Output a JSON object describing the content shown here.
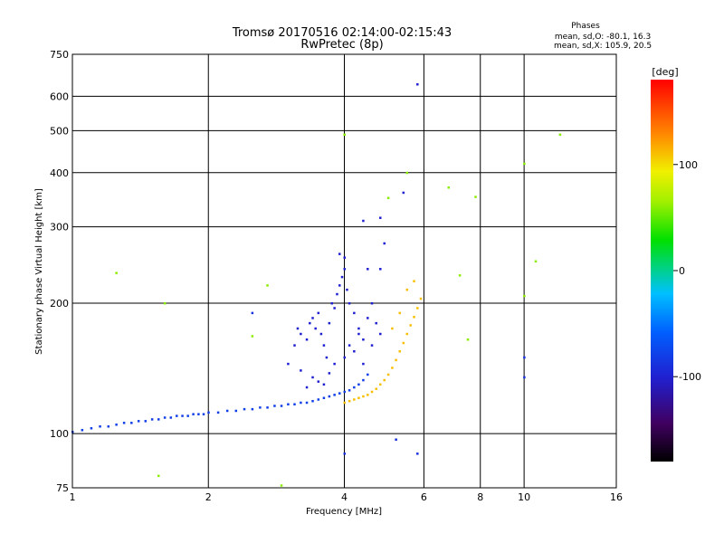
{
  "chart_data": {
    "type": "scatter",
    "title_line1": "Tromsø 20170516 02:14:00-02:15:43",
    "title_line2": "RwPretec (8p)",
    "stats": {
      "heading": "Phases",
      "line_o": "mean, sd,O: -80.1, 16.3",
      "line_x": "mean, sd,X: 105.9, 20.5"
    },
    "xlabel": "Frequency [MHz]",
    "ylabel": "Stationary phase Virtual Height [km]",
    "xscale": "log",
    "yscale": "log",
    "xlim": [
      1,
      16
    ],
    "ylim": [
      75,
      750
    ],
    "xticks": [
      {
        "value": 1,
        "label": "1"
      },
      {
        "value": 2,
        "label": "2"
      },
      {
        "value": 4,
        "label": "4"
      },
      {
        "value": 6,
        "label": "6"
      },
      {
        "value": 8,
        "label": "8"
      },
      {
        "value": 10,
        "label": "10"
      },
      {
        "value": 16,
        "label": "16"
      }
    ],
    "yticks": [
      {
        "value": 75,
        "label": "75"
      },
      {
        "value": 100,
        "label": "100"
      },
      {
        "value": 200,
        "label": "200"
      },
      {
        "value": 300,
        "label": "300"
      },
      {
        "value": 400,
        "label": "400"
      },
      {
        "value": 500,
        "label": "500"
      },
      {
        "value": 600,
        "label": "600"
      },
      {
        "value": 750,
        "label": "750"
      }
    ],
    "colorbar": {
      "unit_label": "[deg]",
      "range": [
        -180,
        180
      ],
      "ticks": [
        {
          "value": 100,
          "label": "100"
        },
        {
          "value": 0,
          "label": "0"
        },
        {
          "value": -100,
          "label": "-100"
        }
      ]
    },
    "series": [
      {
        "name": "O-trace",
        "phase": -80,
        "points": [
          [
            1.0,
            101
          ],
          [
            1.05,
            102
          ],
          [
            1.1,
            103
          ],
          [
            1.15,
            104
          ],
          [
            1.2,
            104
          ],
          [
            1.25,
            105
          ],
          [
            1.3,
            106
          ],
          [
            1.35,
            106
          ],
          [
            1.4,
            107
          ],
          [
            1.45,
            107
          ],
          [
            1.5,
            108
          ],
          [
            1.55,
            108
          ],
          [
            1.6,
            109
          ],
          [
            1.65,
            109
          ],
          [
            1.7,
            110
          ],
          [
            1.75,
            110
          ],
          [
            1.8,
            110
          ],
          [
            1.85,
            111
          ],
          [
            1.9,
            111
          ],
          [
            1.95,
            111
          ],
          [
            2.0,
            112
          ],
          [
            2.1,
            112
          ],
          [
            2.2,
            113
          ],
          [
            2.3,
            113
          ],
          [
            2.4,
            114
          ],
          [
            2.5,
            114
          ],
          [
            2.6,
            115
          ],
          [
            2.7,
            115
          ],
          [
            2.8,
            116
          ],
          [
            2.9,
            116
          ],
          [
            3.0,
            117
          ],
          [
            3.1,
            117
          ],
          [
            3.2,
            118
          ],
          [
            3.3,
            118
          ],
          [
            3.4,
            119
          ],
          [
            3.5,
            120
          ],
          [
            3.6,
            121
          ],
          [
            3.7,
            122
          ],
          [
            3.8,
            123
          ],
          [
            3.9,
            124
          ],
          [
            4.0,
            125
          ],
          [
            4.1,
            126
          ],
          [
            4.2,
            128
          ],
          [
            4.3,
            130
          ],
          [
            4.4,
            133
          ],
          [
            4.5,
            137
          ]
        ]
      },
      {
        "name": "O-spread",
        "phase": -100,
        "points": [
          [
            3.0,
            145
          ],
          [
            3.1,
            160
          ],
          [
            3.15,
            175
          ],
          [
            3.2,
            170
          ],
          [
            3.3,
            165
          ],
          [
            3.35,
            180
          ],
          [
            3.4,
            185
          ],
          [
            3.45,
            175
          ],
          [
            3.5,
            190
          ],
          [
            3.55,
            170
          ],
          [
            3.6,
            160
          ],
          [
            3.65,
            150
          ],
          [
            3.7,
            180
          ],
          [
            3.75,
            200
          ],
          [
            3.8,
            195
          ],
          [
            3.85,
            210
          ],
          [
            3.9,
            220
          ],
          [
            3.95,
            230
          ],
          [
            4.0,
            240
          ],
          [
            4.05,
            215
          ],
          [
            4.1,
            200
          ],
          [
            4.2,
            190
          ],
          [
            4.3,
            175
          ],
          [
            4.4,
            165
          ],
          [
            4.5,
            185
          ],
          [
            4.6,
            200
          ],
          [
            4.7,
            180
          ],
          [
            4.8,
            170
          ],
          [
            3.2,
            140
          ],
          [
            3.4,
            135
          ],
          [
            3.6,
            130
          ],
          [
            3.8,
            145
          ],
          [
            4.0,
            150
          ],
          [
            4.2,
            155
          ],
          [
            4.4,
            145
          ],
          [
            3.3,
            128
          ],
          [
            3.5,
            132
          ],
          [
            3.7,
            138
          ],
          [
            4.1,
            160
          ],
          [
            4.3,
            170
          ],
          [
            4.6,
            160
          ],
          [
            4.8,
            240
          ],
          [
            4.9,
            275
          ],
          [
            4.4,
            310
          ],
          [
            4.8,
            315
          ],
          [
            5.4,
            360
          ],
          [
            5.8,
            640
          ],
          [
            4.0,
            255
          ],
          [
            3.9,
            260
          ],
          [
            4.5,
            240
          ]
        ]
      },
      {
        "name": "X-trace",
        "phase": 110,
        "points": [
          [
            4.0,
            118
          ],
          [
            4.1,
            119
          ],
          [
            4.2,
            120
          ],
          [
            4.3,
            121
          ],
          [
            4.4,
            122
          ],
          [
            4.5,
            123
          ],
          [
            4.6,
            125
          ],
          [
            4.7,
            127
          ],
          [
            4.8,
            130
          ],
          [
            4.9,
            133
          ],
          [
            5.0,
            137
          ],
          [
            5.1,
            142
          ],
          [
            5.2,
            148
          ],
          [
            5.3,
            155
          ],
          [
            5.4,
            162
          ],
          [
            5.5,
            170
          ],
          [
            5.6,
            178
          ],
          [
            5.7,
            186
          ],
          [
            5.8,
            195
          ],
          [
            5.9,
            205
          ],
          [
            5.1,
            175
          ],
          [
            5.3,
            190
          ],
          [
            5.5,
            215
          ],
          [
            5.7,
            225
          ]
        ]
      },
      {
        "name": "Scattered",
        "phase": 60,
        "points": [
          [
            1.25,
            235
          ],
          [
            1.55,
            80
          ],
          [
            1.6,
            200
          ],
          [
            2.5,
            168
          ],
          [
            4.0,
            490
          ],
          [
            5.0,
            350
          ],
          [
            5.5,
            400
          ],
          [
            6.8,
            370
          ],
          [
            7.2,
            232
          ],
          [
            7.8,
            352
          ],
          [
            10.0,
            420
          ],
          [
            10.6,
            250
          ],
          [
            12.0,
            490
          ],
          [
            10.0,
            208
          ],
          [
            7.5,
            165
          ],
          [
            2.9,
            76
          ],
          [
            2.7,
            220
          ]
        ]
      },
      {
        "name": "Outliers",
        "phase": -90,
        "points": [
          [
            10.0,
            150
          ],
          [
            10.0,
            135
          ],
          [
            5.8,
            90
          ],
          [
            5.2,
            97
          ],
          [
            2.5,
            190
          ],
          [
            4.0,
            90
          ]
        ]
      }
    ]
  }
}
